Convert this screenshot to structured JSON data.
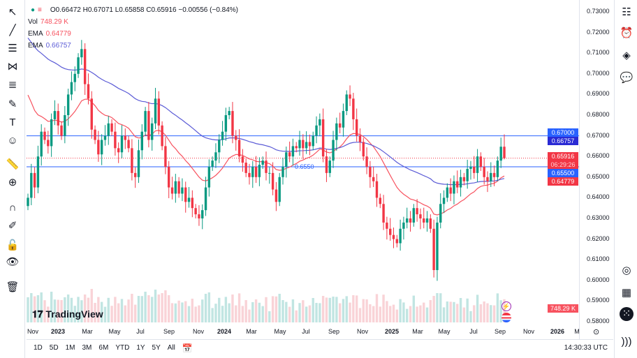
{
  "legend": {
    "ohlc": "O0.66472 H0.67071 L0.65858 C0.65916 −0.00556 (−0.84%)",
    "vol_label": "Vol",
    "vol_value": "748.29 K",
    "ema1_label": "EMA",
    "ema1_value": "0.64779",
    "ema2_label": "EMA",
    "ema2_value": "0.66757"
  },
  "price_labels": {
    "line_high": "0.67000",
    "ema_slow": "0.66757",
    "last": "0.65916",
    "countdown": "06:29:26",
    "line_low": "0.65500",
    "ema_fast": "0.64779",
    "volume": "748.29 K"
  },
  "hline_label": "0.6550",
  "brand": "TradingView",
  "ranges": [
    "1D",
    "5D",
    "1M",
    "3M",
    "6M",
    "YTD",
    "1Y",
    "5Y",
    "All"
  ],
  "clock": "14:30:33 UTC",
  "colors": {
    "up": "#089981",
    "down": "#f23645",
    "ema_fast": "#f7525f",
    "ema_slow": "#5b5bd6",
    "hline": "#2962ff"
  },
  "chart_data": {
    "type": "candlestick",
    "symbol_timeframe": "weekly",
    "y_ticks": [
      "0.73000",
      "0.72000",
      "0.71000",
      "0.70000",
      "0.69000",
      "0.68000",
      "0.67000",
      "0.66000",
      "0.65000",
      "0.64000",
      "0.63000",
      "0.62000",
      "0.61000",
      "0.60000",
      "0.59000",
      "0.58000"
    ],
    "x_ticks": [
      "Nov",
      "2023",
      "Mar",
      "May",
      "Jul",
      "Sep",
      "Nov",
      "2024",
      "Mar",
      "May",
      "Jul",
      "Sep",
      "Nov",
      "2025",
      "Mar",
      "May",
      "Jul",
      "Sep",
      "Nov",
      "2026",
      "M"
    ],
    "ylim": [
      0.58,
      0.73
    ],
    "horizontal_lines": [
      0.67,
      0.655
    ],
    "last_candle": {
      "open": 0.66472,
      "high": 0.67071,
      "low": 0.65858,
      "close": 0.65916
    },
    "closes": [
      0.64,
      0.652,
      0.645,
      0.66,
      0.672,
      0.668,
      0.665,
      0.678,
      0.682,
      0.675,
      0.67,
      0.68,
      0.69,
      0.696,
      0.7,
      0.708,
      0.712,
      0.695,
      0.688,
      0.673,
      0.668,
      0.661,
      0.668,
      0.67,
      0.676,
      0.672,
      0.664,
      0.662,
      0.67,
      0.668,
      0.664,
      0.652,
      0.65,
      0.663,
      0.672,
      0.682,
      0.668,
      0.676,
      0.688,
      0.675,
      0.665,
      0.655,
      0.645,
      0.642,
      0.648,
      0.642,
      0.645,
      0.638,
      0.64,
      0.635,
      0.632,
      0.63,
      0.634,
      0.645,
      0.655,
      0.658,
      0.662,
      0.668,
      0.672,
      0.68,
      0.682,
      0.67,
      0.668,
      0.66,
      0.657,
      0.652,
      0.65,
      0.655,
      0.65,
      0.656,
      0.658,
      0.652,
      0.652,
      0.644,
      0.638,
      0.65,
      0.655,
      0.662,
      0.66,
      0.665,
      0.664,
      0.668,
      0.664,
      0.667,
      0.665,
      0.67,
      0.675,
      0.678,
      0.66,
      0.652,
      0.658,
      0.668,
      0.676,
      0.674,
      0.682,
      0.69,
      0.688,
      0.678,
      0.67,
      0.667,
      0.66,
      0.655,
      0.65,
      0.648,
      0.64,
      0.637,
      0.628,
      0.625,
      0.622,
      0.62,
      0.618,
      0.625,
      0.628,
      0.63,
      0.628,
      0.635,
      0.632,
      0.63,
      0.628,
      0.63,
      0.625,
      0.605,
      0.628,
      0.637,
      0.64,
      0.645,
      0.642,
      0.648,
      0.645,
      0.65,
      0.648,
      0.654,
      0.655,
      0.652,
      0.66,
      0.655,
      0.65,
      0.648,
      0.652,
      0.65,
      0.658,
      0.66472,
      0.65916
    ]
  }
}
